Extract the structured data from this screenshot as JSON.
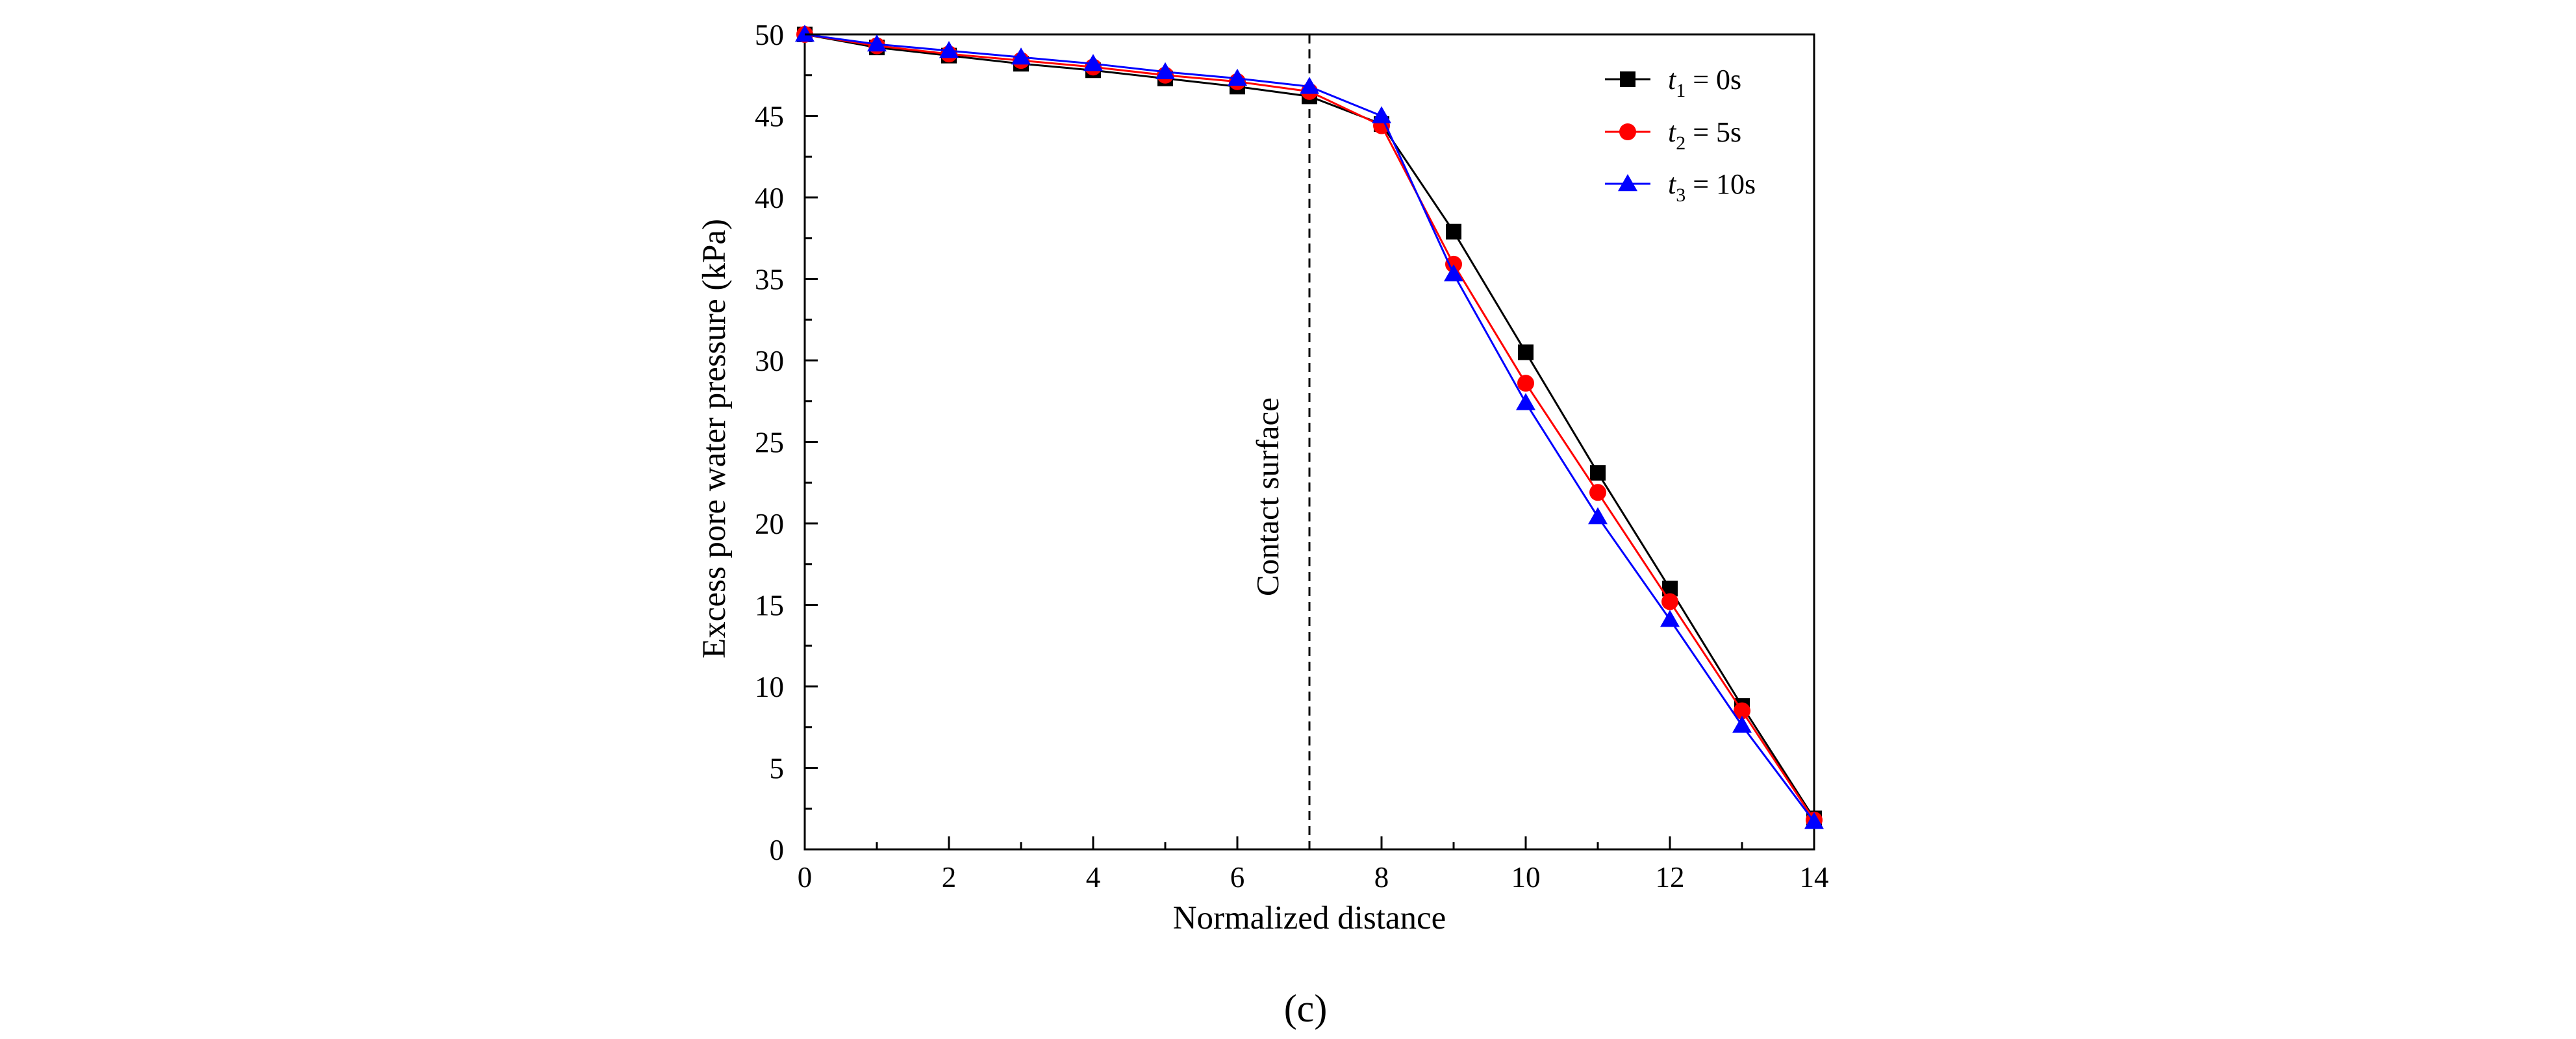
{
  "chart_data": {
    "type": "line",
    "title": "",
    "xlabel": "Normalized distance",
    "ylabel": "Excess pore water pressure (kPa)",
    "xlim": [
      0,
      14
    ],
    "ylim": [
      0,
      50
    ],
    "xticks": [
      0,
      2,
      4,
      6,
      8,
      10,
      12,
      14
    ],
    "yticks": [
      0,
      5,
      10,
      15,
      20,
      25,
      30,
      35,
      40,
      45,
      50
    ],
    "grid": false,
    "legend_position": "top-right",
    "x": [
      0,
      1,
      2,
      3,
      4,
      5,
      6,
      7,
      8,
      9,
      10,
      11,
      12,
      13,
      14
    ],
    "series": [
      {
        "name": "t1 = 0s",
        "var": "t",
        "sub": "1",
        "rest": " = 0s",
        "color": "#000000",
        "marker": "square",
        "values": [
          50.0,
          49.2,
          48.7,
          48.2,
          47.8,
          47.3,
          46.8,
          46.2,
          44.5,
          37.9,
          30.5,
          23.1,
          16.0,
          8.8,
          1.9
        ]
      },
      {
        "name": "t2 = 5s",
        "var": "t",
        "sub": "2",
        "rest": " = 5s",
        "color": "#ff0000",
        "marker": "circle",
        "values": [
          50.0,
          49.3,
          48.8,
          48.4,
          48.0,
          47.5,
          47.1,
          46.5,
          44.4,
          35.9,
          28.6,
          21.9,
          15.2,
          8.5,
          1.8
        ]
      },
      {
        "name": "t3 = 10s",
        "var": "t",
        "sub": "3",
        "rest": " = 10s",
        "color": "#0000ff",
        "marker": "triangle",
        "values": [
          50.0,
          49.4,
          49.0,
          48.6,
          48.2,
          47.7,
          47.3,
          46.8,
          45.0,
          35.3,
          27.4,
          20.4,
          14.1,
          7.6,
          1.7
        ]
      }
    ],
    "annotations": [
      {
        "text": "Contact surface",
        "x": 7,
        "style": "dashed-vertical-line"
      }
    ],
    "panel_label": "(c)"
  }
}
